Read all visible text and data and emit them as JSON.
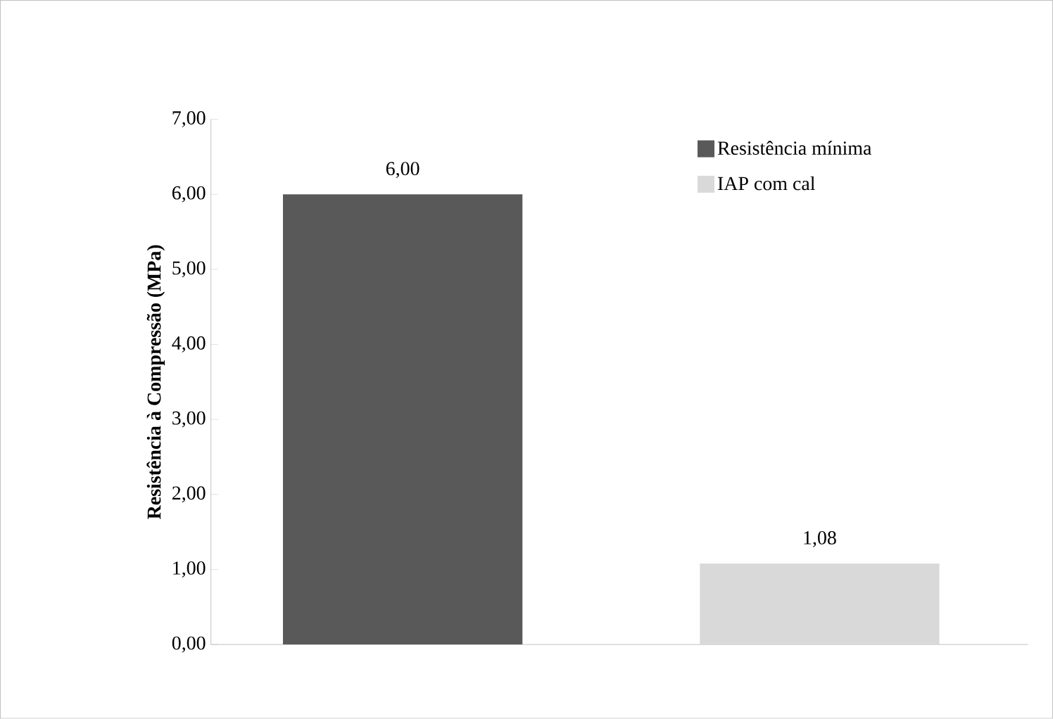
{
  "chart_data": {
    "type": "bar",
    "ylabel": "Resistência à Compressão (MPa)",
    "categories": [
      null,
      null
    ],
    "series": [
      {
        "name": "Resistência mínima",
        "color": "#595959",
        "values": [
          6.0,
          null
        ],
        "value_labels": [
          "6,00",
          null
        ]
      },
      {
        "name": "IAP com cal",
        "color": "#d9d9d9",
        "values": [
          null,
          1.08
        ],
        "value_labels": [
          null,
          "1,08"
        ]
      }
    ],
    "ylim": [
      0,
      7
    ],
    "yticks": [
      {
        "value": 0,
        "label": "0,00"
      },
      {
        "value": 1,
        "label": "1,00"
      },
      {
        "value": 2,
        "label": "2,00"
      },
      {
        "value": 3,
        "label": "3,00"
      },
      {
        "value": 4,
        "label": "4,00"
      },
      {
        "value": 5,
        "label": "5,00"
      },
      {
        "value": 6,
        "label": "6,00"
      },
      {
        "value": 7,
        "label": "7,00"
      }
    ],
    "legend": "top right"
  }
}
